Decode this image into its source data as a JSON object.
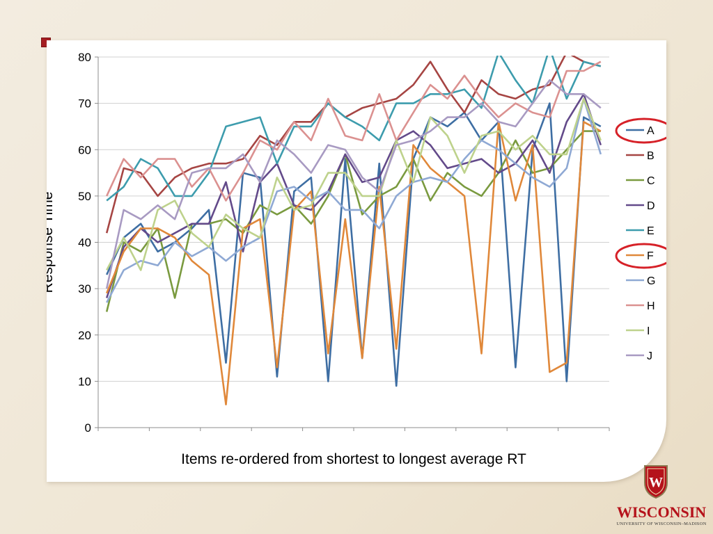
{
  "chart_data": {
    "type": "line",
    "title": "",
    "xlabel": "Items re-ordered from shortest to longest average RT",
    "ylabel": "Response Time",
    "ylim": [
      0,
      80
    ],
    "yticks": [
      "0",
      "10",
      "20",
      "30",
      "40",
      "50",
      "60",
      "70",
      "80"
    ],
    "grid": true,
    "legend_position": "right",
    "highlighted_series": [
      "A",
      "F"
    ],
    "series": [
      {
        "name": "A",
        "color": "#3e6ea3",
        "values": [
          33,
          41,
          44,
          38,
          40,
          43,
          47,
          14,
          55,
          54,
          11,
          51,
          54,
          10,
          58,
          15,
          57,
          9,
          58,
          67,
          65,
          68,
          62,
          66,
          13,
          60,
          70,
          10,
          67,
          65
        ]
      },
      {
        "name": "B",
        "color": "#a64543",
        "values": [
          42,
          56,
          55,
          50,
          54,
          56,
          57,
          57,
          58,
          63,
          61,
          66,
          66,
          70,
          67,
          69,
          70,
          71,
          74,
          79,
          73,
          68,
          75,
          72,
          71,
          73,
          74,
          81,
          79,
          78
        ]
      },
      {
        "name": "C",
        "color": "#7a9a3f",
        "values": [
          25,
          40,
          38,
          43,
          28,
          44,
          44,
          45,
          42,
          48,
          46,
          48,
          44,
          50,
          59,
          46,
          50,
          52,
          58,
          49,
          55,
          52,
          50,
          55,
          62,
          55,
          56,
          60,
          64,
          64
        ]
      },
      {
        "name": "D",
        "color": "#634a8a",
        "values": [
          28,
          39,
          43,
          40,
          42,
          44,
          44,
          53,
          38,
          53,
          57,
          48,
          47,
          51,
          59,
          53,
          54,
          62,
          64,
          61,
          56,
          57,
          58,
          55,
          57,
          62,
          55,
          66,
          72,
          61
        ]
      },
      {
        "name": "E",
        "color": "#3d9cad",
        "values": [
          49,
          52,
          58,
          56,
          50,
          50,
          55,
          65,
          66,
          67,
          57,
          65,
          65,
          70,
          67,
          65,
          62,
          70,
          70,
          72,
          72,
          73,
          69,
          81,
          75,
          70,
          82,
          71,
          79,
          78
        ]
      },
      {
        "name": "F",
        "color": "#e0883a",
        "values": [
          29,
          38,
          43,
          43,
          41,
          36,
          33,
          5,
          43,
          45,
          13,
          47,
          51,
          16,
          45,
          15,
          52,
          17,
          61,
          56,
          53,
          50,
          16,
          66,
          49,
          61,
          12,
          14,
          66,
          64
        ]
      },
      {
        "name": "G",
        "color": "#8fa9d4",
        "values": [
          27,
          34,
          36,
          35,
          40,
          37,
          39,
          36,
          39,
          41,
          51,
          52,
          49,
          51,
          47,
          47,
          43,
          50,
          53,
          54,
          53,
          58,
          62,
          60,
          57,
          54,
          52,
          56,
          71,
          59
        ]
      },
      {
        "name": "H",
        "color": "#db9190",
        "values": [
          50,
          58,
          54,
          58,
          58,
          52,
          56,
          49,
          55,
          62,
          60,
          66,
          62,
          71,
          63,
          62,
          72,
          62,
          68,
          74,
          71,
          76,
          71,
          67,
          70,
          68,
          67,
          77,
          77,
          79
        ]
      },
      {
        "name": "I",
        "color": "#bed28c",
        "values": [
          34,
          41,
          34,
          47,
          49,
          42,
          39,
          46,
          43,
          41,
          54,
          47,
          48,
          55,
          55,
          50,
          50,
          62,
          53,
          67,
          63,
          55,
          63,
          64,
          60,
          63,
          59,
          59,
          71,
          62
        ]
      },
      {
        "name": "J",
        "color": "#a89ac2",
        "values": [
          30,
          47,
          45,
          48,
          45,
          55,
          56,
          56,
          59,
          53,
          62,
          59,
          55,
          61,
          60,
          54,
          51,
          61,
          62,
          64,
          67,
          67,
          70,
          66,
          65,
          70,
          75,
          72,
          72,
          69
        ]
      }
    ]
  },
  "logo": {
    "wordmark": "WISCONSIN",
    "subline": "UNIVERSITY OF WISCONSIN–MADISON",
    "crest_letter": "W"
  }
}
